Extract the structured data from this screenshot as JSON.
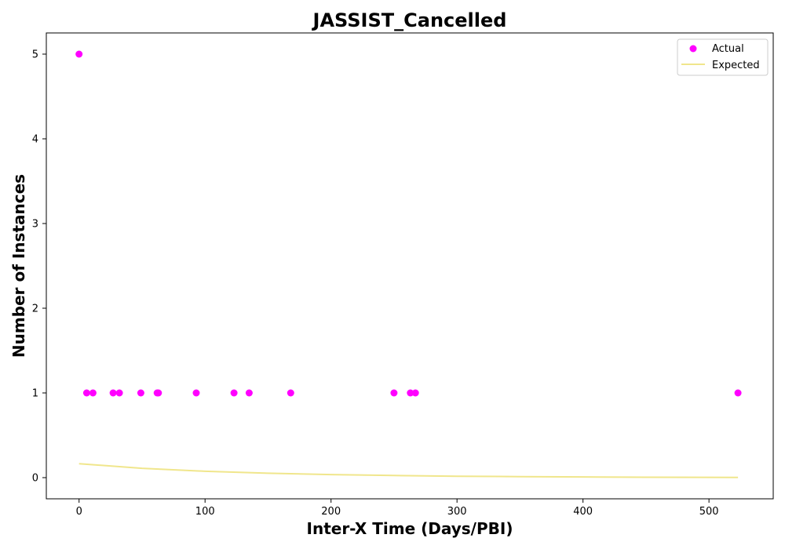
{
  "chart_data": {
    "type": "scatter",
    "title": "JASSIST_Cancelled",
    "xlabel": "Inter-X Time (Days/PBI)",
    "ylabel": "Number of Instances",
    "xlim": [
      -26,
      551
    ],
    "ylim": [
      -0.25,
      5.25
    ],
    "xticks": [
      0,
      100,
      200,
      300,
      400,
      500
    ],
    "yticks": [
      0,
      1,
      2,
      3,
      4,
      5
    ],
    "grid": false,
    "legend_position": "top-right",
    "series": [
      {
        "name": "Actual",
        "kind": "scatter",
        "color": "#ff00ff",
        "points": [
          [
            0,
            5
          ],
          [
            6,
            1
          ],
          [
            11,
            1
          ],
          [
            27,
            1
          ],
          [
            32,
            1
          ],
          [
            49,
            1
          ],
          [
            62,
            1
          ],
          [
            63,
            1
          ],
          [
            93,
            1
          ],
          [
            123,
            1
          ],
          [
            135,
            1
          ],
          [
            168,
            1
          ],
          [
            250,
            1
          ],
          [
            263,
            1
          ],
          [
            267,
            1
          ],
          [
            523,
            1
          ]
        ]
      },
      {
        "name": "Expected",
        "kind": "line",
        "color": "#f0e68c",
        "points": [
          [
            0,
            0.165
          ],
          [
            50,
            0.11
          ],
          [
            100,
            0.075
          ],
          [
            150,
            0.052
          ],
          [
            200,
            0.036
          ],
          [
            250,
            0.025
          ],
          [
            300,
            0.017
          ],
          [
            350,
            0.012
          ],
          [
            400,
            0.008
          ],
          [
            450,
            0.005
          ],
          [
            523,
            0.003
          ]
        ]
      }
    ]
  }
}
